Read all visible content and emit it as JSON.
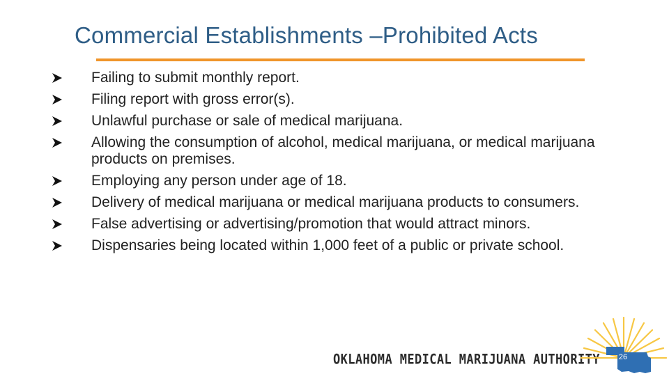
{
  "slide": {
    "title": "Commercial Establishments –Prohibited Acts",
    "bullets": [
      {
        "text": "Failing to submit monthly report."
      },
      {
        "text": "Filing report with gross error(s)."
      },
      {
        "text": "Unlawful purchase or sale of medical marijuana."
      },
      {
        "text": "Allowing the consumption of alcohol, medical marijuana, or medical marijuana products on premises."
      },
      {
        "text": "Employing any person under age of 18."
      },
      {
        "text": "Delivery of medical marijuana or medical marijuana products to consumers."
      },
      {
        "text": "False advertising or advertising/promotion that would attract minors."
      },
      {
        "text": "Dispensaries being located within 1,000 feet of a public or private school."
      }
    ],
    "bullet_icon": "arrowhead-bullet-icon",
    "footer_org": "OKLAHOMA MEDICAL MARIJUANA AUTHORITY",
    "page_number": "26"
  },
  "colors": {
    "title": "#2e5d86",
    "accent_orange": "#f0952a",
    "sun_yellow": "#f7c744",
    "state_blue": "#2f6fb3",
    "body_text": "#222222"
  }
}
